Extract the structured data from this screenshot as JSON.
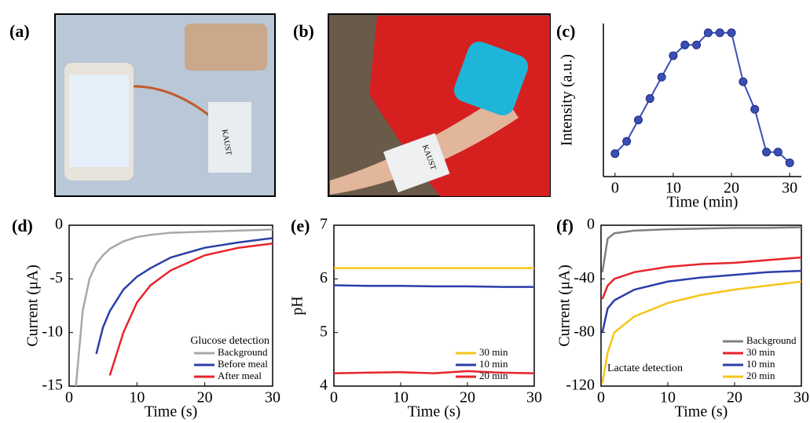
{
  "photos": [
    {
      "label": "(a)",
      "text": "KAUST"
    },
    {
      "label": "(b)",
      "text": "KAUST"
    }
  ],
  "chart_data": [
    {
      "type": "line",
      "label": "(c)",
      "xlabel": "Time (min)",
      "ylabel": "Intensity (a.u.)",
      "markers": true,
      "frame": false,
      "x": [
        0,
        2,
        4,
        6,
        8,
        10,
        12,
        14,
        16,
        18,
        20,
        22,
        24,
        26,
        28,
        30
      ],
      "series": [
        {
          "color": "#3a4fb5",
          "values": [
            0.15,
            0.23,
            0.37,
            0.51,
            0.65,
            0.79,
            0.86,
            0.86,
            0.94,
            0.94,
            0.94,
            0.62,
            0.44,
            0.16,
            0.16,
            0.09
          ]
        }
      ],
      "xlim": [
        -2,
        32
      ],
      "xticks": [
        0,
        10,
        20,
        30
      ],
      "ylim": [
        0,
        1
      ]
    },
    {
      "type": "line",
      "label": "(d)",
      "xlabel": "Time (s)",
      "ylabel": "Current (μA)",
      "frame": true,
      "legend": "lower right",
      "legend_title": "Glucose detection",
      "x": [
        1,
        2,
        3,
        4,
        5,
        6,
        8,
        10,
        12,
        15,
        20,
        25,
        30
      ],
      "series": [
        {
          "name": "Background",
          "color": "#a8a8a8",
          "values": [
            -15,
            -8,
            -5,
            -3.6,
            -2.8,
            -2.2,
            -1.5,
            -1.1,
            -0.9,
            -0.7,
            -0.6,
            -0.5,
            -0.4
          ]
        },
        {
          "name": "Before meal",
          "color": "#2b3fa8",
          "values": [
            null,
            null,
            null,
            -12,
            -9.5,
            -8,
            -6,
            -4.8,
            -4,
            -3,
            -2.1,
            -1.6,
            -1.2
          ]
        },
        {
          "name": "After meal",
          "color": "#e8232a",
          "values": [
            null,
            null,
            null,
            null,
            null,
            -14,
            -10,
            -7.2,
            -5.6,
            -4.2,
            -2.8,
            -2.1,
            -1.7
          ]
        }
      ],
      "xlim": [
        0,
        30
      ],
      "xticks": [
        0,
        10,
        20,
        30
      ],
      "ylim": [
        -15,
        0
      ],
      "yticks": [
        -15,
        -10,
        -5,
        0
      ]
    },
    {
      "type": "line",
      "label": "(e)",
      "xlabel": "Time (s)",
      "ylabel": "pH",
      "frame": true,
      "legend": "lower right",
      "x": [
        0,
        5,
        10,
        15,
        20,
        25,
        30
      ],
      "series": [
        {
          "name": "30 min",
          "color": "#f5c518",
          "values": [
            6.2,
            6.2,
            6.2,
            6.2,
            6.2,
            6.2,
            6.2
          ]
        },
        {
          "name": "10 min",
          "color": "#2b3fa8",
          "values": [
            5.88,
            5.87,
            5.87,
            5.86,
            5.86,
            5.85,
            5.85
          ]
        },
        {
          "name": "20 min",
          "color": "#e8232a",
          "values": [
            4.24,
            4.25,
            4.26,
            4.24,
            4.28,
            4.25,
            4.24
          ]
        }
      ],
      "xlim": [
        0,
        30
      ],
      "xticks": [
        0,
        10,
        20,
        30
      ],
      "ylim": [
        4,
        7
      ],
      "yticks": [
        4,
        5,
        6,
        7
      ]
    },
    {
      "type": "line",
      "label": "(f)",
      "xlabel": "Time (s)",
      "ylabel": "Current (μA)",
      "frame": true,
      "legend": "lower right",
      "annotation": "Lactate detection",
      "x": [
        0.2,
        1,
        2,
        5,
        10,
        15,
        20,
        25,
        30
      ],
      "series": [
        {
          "name": "Background",
          "color": "#808080",
          "values": [
            -35,
            -10,
            -6,
            -4,
            -3,
            -2.5,
            -2,
            -2,
            -1.5
          ]
        },
        {
          "name": "30 min",
          "color": "#e8232a",
          "values": [
            -55,
            -45,
            -40,
            -35,
            -31,
            -29,
            -28,
            -26,
            -24
          ]
        },
        {
          "name": "10 min",
          "color": "#2b3fa8",
          "values": [
            -80,
            -62,
            -56,
            -48,
            -42,
            -39,
            -37,
            -35,
            -34
          ]
        },
        {
          "name": "20 min",
          "color": "#f5c518",
          "values": [
            -118,
            -95,
            -80,
            -68,
            -58,
            -52,
            -48,
            -45,
            -42
          ]
        }
      ],
      "xlim": [
        0,
        30
      ],
      "xticks": [
        0,
        10,
        20,
        30
      ],
      "ylim": [
        -120,
        0
      ],
      "yticks": [
        -120,
        -80,
        -40,
        0
      ]
    }
  ]
}
